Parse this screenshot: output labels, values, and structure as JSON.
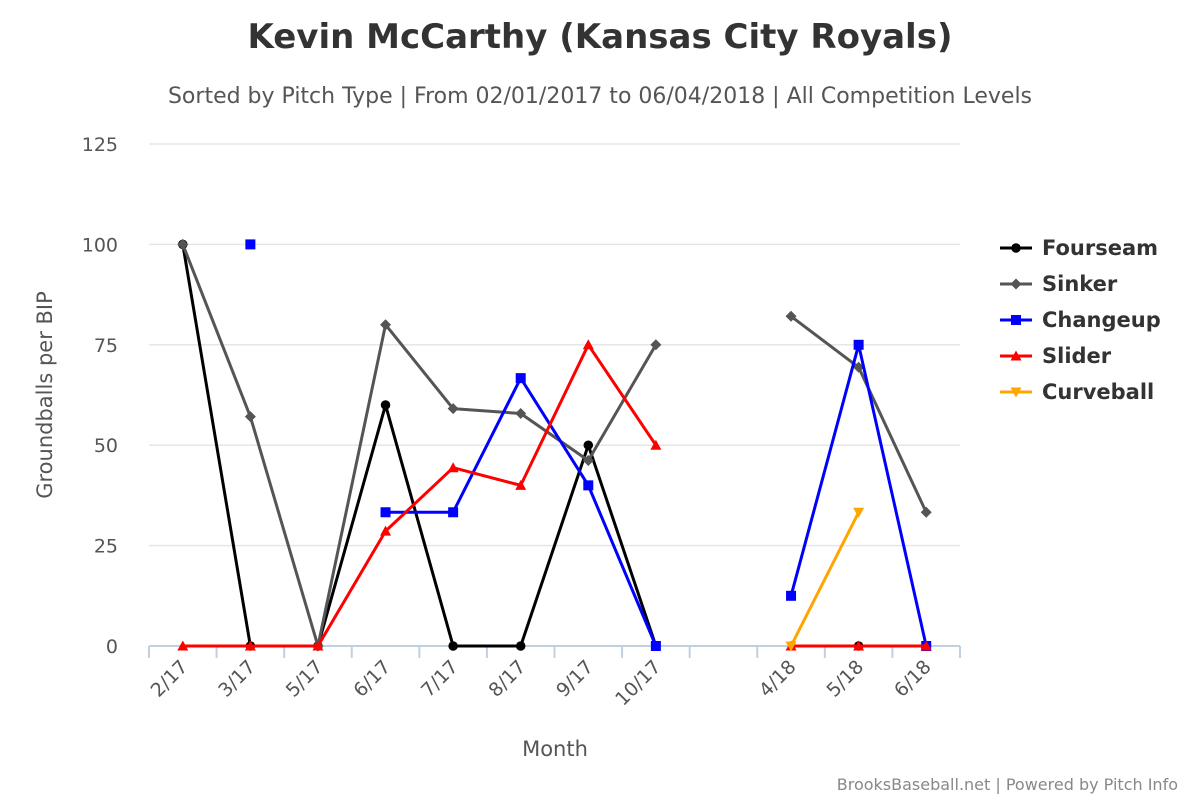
{
  "chart_data": {
    "type": "line",
    "title": "Kevin McCarthy (Kansas City Royals)",
    "subtitle": "Sorted by Pitch Type | From 02/01/2017 to 06/04/2018 | All Competition Levels",
    "xlabel": "Month",
    "ylabel": "Groundballs per BIP",
    "ylim": [
      0,
      125
    ],
    "yticks": [
      0,
      25,
      50,
      75,
      100,
      125
    ],
    "categories": [
      "2/17",
      "3/17",
      "5/17",
      "6/17",
      "7/17",
      "8/17",
      "9/17",
      "10/17",
      "",
      "4/18",
      "5/18",
      "6/18"
    ],
    "grid": true,
    "legend_position": "right",
    "credit": "BrooksBaseball.net | Powered by Pitch Info",
    "series": [
      {
        "name": "Fourseam",
        "color": "#000000",
        "marker": "circle",
        "values": [
          100,
          0,
          0,
          60,
          0,
          0,
          50,
          0,
          null,
          null,
          0,
          null
        ]
      },
      {
        "name": "Sinker",
        "color": "#555555",
        "marker": "diamond",
        "values": [
          100,
          57.1,
          0,
          80,
          59.1,
          57.9,
          46.2,
          75,
          null,
          82.1,
          69.4,
          33.3
        ]
      },
      {
        "name": "Changeup",
        "color": "#0000ff",
        "marker": "square",
        "values": [
          null,
          100,
          null,
          33.3,
          33.3,
          66.7,
          40,
          0,
          null,
          12.5,
          75,
          0
        ]
      },
      {
        "name": "Slider",
        "color": "#ff0000",
        "marker": "triangle",
        "values": [
          0,
          0,
          0,
          28.6,
          44.4,
          40,
          75,
          50,
          null,
          0,
          0,
          0
        ]
      },
      {
        "name": "Curveball",
        "color": "#ffa500",
        "marker": "triangle-down",
        "values": [
          null,
          null,
          null,
          null,
          null,
          null,
          null,
          null,
          null,
          0,
          33.3,
          null
        ]
      }
    ]
  }
}
